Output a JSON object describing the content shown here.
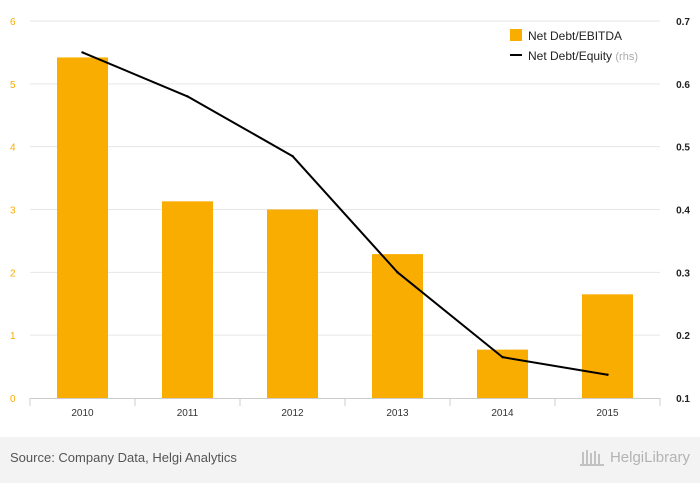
{
  "chart_data": {
    "type": "bar+line",
    "categories": [
      "2010",
      "2011",
      "2012",
      "2013",
      "2014",
      "2015"
    ],
    "series": [
      {
        "name": "Net Debt/EBITDA",
        "type": "bar",
        "axis": "left",
        "color": "#f9ad00",
        "values": [
          5.42,
          3.13,
          3.0,
          2.29,
          0.77,
          1.65
        ]
      },
      {
        "name": "Net Debt/Equity",
        "legend_suffix": "(rhs)",
        "type": "line",
        "axis": "right",
        "color": "#000000",
        "values": [
          0.65,
          0.58,
          0.485,
          0.3,
          0.165,
          0.137
        ]
      }
    ],
    "y_left": {
      "min": 0,
      "max": 6,
      "ticks": [
        "0",
        "1",
        "2",
        "3",
        "4",
        "5",
        "6"
      ],
      "tick_color": "#f9ad00"
    },
    "y_right": {
      "min": 0.1,
      "max": 0.7,
      "ticks": [
        "0.1",
        "0.2",
        "0.3",
        "0.4",
        "0.5",
        "0.6",
        "0.7"
      ]
    },
    "grid": true,
    "legend_position": "top-right"
  },
  "footer": {
    "source": "Source: Company Data, Helgi Analytics",
    "brand": "HelgiLibrary"
  }
}
